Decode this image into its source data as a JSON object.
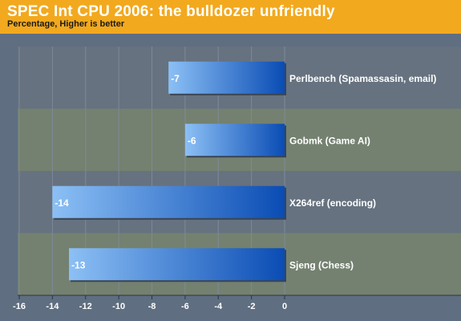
{
  "chart_data": {
    "type": "bar",
    "orientation": "horizontal",
    "title": "SPEC Int CPU 2006: the bulldozer unfriendly",
    "subtitle": "Percentage, Higher is better",
    "categories": [
      "Perlbench (Spamassasin, email)",
      "Gobmk (Game AI)",
      "X264ref (encoding)",
      "Sjeng (Chess)"
    ],
    "values": [
      -7,
      -6,
      -14,
      -13
    ],
    "data_labels": [
      "-7",
      "-6",
      "-14",
      "-13"
    ],
    "xlim": [
      -16,
      0
    ],
    "x_ticks": [
      -16,
      -14,
      -12,
      -10,
      -8,
      -6,
      -4,
      -2,
      0
    ],
    "x_tick_labels": [
      "-16",
      "-14",
      "-12",
      "-10",
      "-8",
      "-6",
      "-4",
      "-2",
      "0"
    ],
    "grid": true,
    "legend": "none",
    "colors": {
      "header": "#f2a91e",
      "background": "#5f6e80",
      "band_dark": "#66727f",
      "band_light": "#748170",
      "bar_light": "#8cc0f5",
      "bar_dark": "#0a4cb4"
    }
  }
}
